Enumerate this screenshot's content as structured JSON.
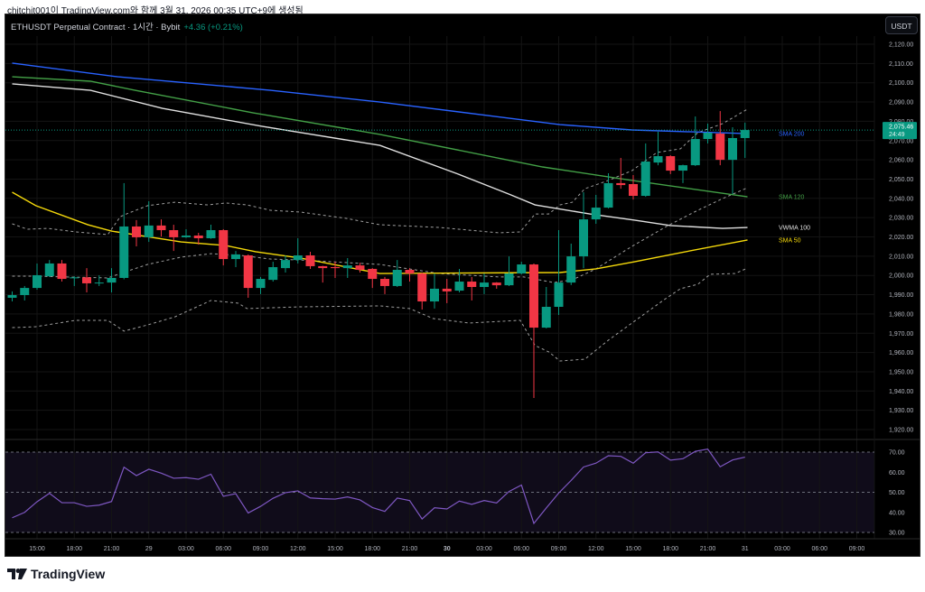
{
  "caption": "chitchit001이 TradingView.com와 함께 3월 31, 2026 00:35 UTC+9에 생성됨",
  "header": {
    "symbol": "ETHUSDT Perpetual Contract · 1시간 · Bybit",
    "change": "+4.36 (+0.21%)"
  },
  "currency_button": "USDT",
  "footer_logo": "TradingView",
  "colors": {
    "up": "#089981",
    "down": "#f23645",
    "sma200": "#2962ff",
    "sma120": "#43a047",
    "vwma100": "#e0e0e0",
    "sma50": "#f5d90a",
    "bands": "#9e9e9e",
    "rsi": "#7e57c2"
  },
  "chart_data": {
    "type": "candlestick",
    "title": "ETHUSDT Perpetual Contract · 1시간 · Bybit",
    "interval": "1h",
    "first_candle": "28 13:00",
    "ylim": [
      1915.8,
      2124.2
    ],
    "grid": true,
    "y_ticks": [
      "2,120.00",
      "2,110.00",
      "2,100.00",
      "2,090.00",
      "2,080.00",
      "2,070.00",
      "2,060.00",
      "2,050.00",
      "2,040.00",
      "2,030.00",
      "2,020.00",
      "2,010.00",
      "2,000.00",
      "1,990.00",
      "1,980.00",
      "1,970.00",
      "1,960.00",
      "1,950.00",
      "1,940.00",
      "1,930.00",
      "1,920.00"
    ],
    "y_tick_values": [
      2120,
      2110,
      2100,
      2090,
      2080,
      2070,
      2060,
      2050,
      2040,
      2030,
      2020,
      2010,
      2000,
      1990,
      1980,
      1970,
      1960,
      1950,
      1940,
      1930,
      1920
    ],
    "x_ticks": [
      "15:00",
      "18:00",
      "21:00",
      "29",
      "03:00",
      "06:00",
      "09:00",
      "12:00",
      "15:00",
      "18:00",
      "21:00",
      "30",
      "03:00",
      "06:00",
      "09:00",
      "12:00",
      "15:00",
      "18:00",
      "21:00",
      "31",
      "03:00",
      "06:00",
      "09:00"
    ],
    "x_tick_first_hour": 2,
    "x_tick_step_hours": 3,
    "last_price": {
      "value": 2075.46,
      "label": "2,075.46",
      "countdown": "24:49"
    },
    "ohlc": [
      [
        1988.4,
        1991.7,
        1986.5,
        1989.8
      ],
      [
        1989.8,
        1994.5,
        1987,
        1993.5
      ],
      [
        1993.5,
        2006.2,
        1992.6,
        2000.1
      ],
      [
        1999.6,
        2008,
        1999.2,
        2006.2
      ],
      [
        2006.2,
        2008,
        1996.8,
        1998.2
      ],
      [
        1998.5,
        1999.6,
        1994.5,
        1999
      ],
      [
        1999,
        2003.8,
        1991.2,
        1995.9
      ],
      [
        1995.9,
        2000.1,
        1994.5,
        1996.3
      ],
      [
        1996.3,
        2003.8,
        1991.2,
        1998.7
      ],
      [
        1998.7,
        2047.9,
        1998,
        2025.4
      ],
      [
        2025.4,
        2028.7,
        2015.1,
        2019.8
      ],
      [
        2019.8,
        2038.5,
        2017.4,
        2025.9
      ],
      [
        2025.9,
        2029.1,
        2020.2,
        2023.5
      ],
      [
        2023.5,
        2026.3,
        2012.7,
        2019.8
      ],
      [
        2019.8,
        2024,
        2019.5,
        2020.7
      ],
      [
        2020.7,
        2022.1,
        2016,
        2019.3
      ],
      [
        2019.3,
        2026.3,
        2019,
        2023.5
      ],
      [
        2023.5,
        2024,
        2005.2,
        2008.5
      ],
      [
        2008.5,
        2012.7,
        2004.3,
        2010.9
      ],
      [
        2010.4,
        2010.9,
        1988.4,
        1993.5
      ],
      [
        1993.5,
        1999.2,
        1990.3,
        1998.2
      ],
      [
        1997.7,
        2007.1,
        1996.8,
        2004.3
      ],
      [
        2003.8,
        2010.4,
        2001.5,
        2008
      ],
      [
        2008,
        2019.3,
        2006.2,
        2010.4
      ],
      [
        2010.4,
        2012.3,
        2003.4,
        2004.8
      ],
      [
        2004.8,
        2005,
        1996.3,
        2003.8
      ],
      [
        2004.3,
        2007.1,
        1998.7,
        2003.8
      ],
      [
        2003.8,
        2009,
        1998.7,
        2005.2
      ],
      [
        2005.2,
        2006.6,
        2001.5,
        2002.9
      ],
      [
        2003.4,
        2003.8,
        1993.5,
        1998.2
      ],
      [
        1998.2,
        1999.2,
        1990.3,
        1994.5
      ],
      [
        1994.5,
        2008,
        1994,
        2002.9
      ],
      [
        2002.9,
        2003.8,
        1996.8,
        2001
      ],
      [
        2001,
        2001.5,
        1982.3,
        1986.5
      ],
      [
        1986.5,
        2001,
        1982.8,
        1993.1
      ],
      [
        1993.1,
        1998.2,
        1985.6,
        1991.7
      ],
      [
        1992.1,
        2003.4,
        1991.2,
        1996.8
      ],
      [
        1996.8,
        1999.2,
        1987,
        1994
      ],
      [
        1994,
        2001,
        1990.3,
        1996.3
      ],
      [
        1996.3,
        1996.5,
        1993.1,
        1994.9
      ],
      [
        1994.9,
        2009.9,
        1994.5,
        2001
      ],
      [
        2001,
        2007.1,
        2000.5,
        2005.7
      ],
      [
        2005.7,
        2006.2,
        1936.4,
        1972.9
      ],
      [
        1972.9,
        1994,
        1972.5,
        1983.7
      ],
      [
        1983.7,
        2023.5,
        1979.5,
        1996.3
      ],
      [
        1996.3,
        2016.5,
        1995,
        2009.9
      ],
      [
        2009.9,
        2043.2,
        2003.8,
        2029.1
      ],
      [
        2029.1,
        2041.8,
        2026.8,
        2035.2
      ],
      [
        2035.2,
        2053,
        2034.8,
        2047.9
      ],
      [
        2047.9,
        2061,
        2045,
        2046.9
      ],
      [
        2047.4,
        2052.1,
        2039.4,
        2041.3
      ],
      [
        2041.3,
        2068.5,
        2040.8,
        2059.1
      ],
      [
        2058.6,
        2074.6,
        2057.2,
        2061.9
      ],
      [
        2061.9,
        2062.4,
        2052.6,
        2054.4
      ],
      [
        2054.4,
        2057.5,
        2047.9,
        2057.2
      ],
      [
        2057.2,
        2082.5,
        2056.8,
        2070.8
      ],
      [
        2070.8,
        2078.8,
        2068.5,
        2074.1
      ],
      [
        2073.6,
        2085.3,
        2057.2,
        2060
      ],
      [
        2060,
        2076.9,
        2042.2,
        2071.3
      ],
      [
        2071.3,
        2079.3,
        2061,
        2075.46
      ]
    ],
    "series": [
      {
        "name": "SMA 200",
        "key": "sma200",
        "points": [
          [
            0,
            2110.2
          ],
          [
            8.5,
            2103.1
          ],
          [
            20.8,
            2096.1
          ],
          [
            29.6,
            2090
          ],
          [
            44.1,
            2078.3
          ],
          [
            49.9,
            2075.5
          ],
          [
            59.2,
            2073.6
          ]
        ]
      },
      {
        "name": "SMA 120",
        "key": "sma120",
        "points": [
          [
            0,
            2103.1
          ],
          [
            6.3,
            2100.8
          ],
          [
            9.9,
            2096.1
          ],
          [
            19.4,
            2084.4
          ],
          [
            29.6,
            2073.2
          ],
          [
            42.7,
            2056.3
          ],
          [
            49.9,
            2049.3
          ],
          [
            59.2,
            2040.8
          ]
        ]
      },
      {
        "name": "VWMA 100",
        "key": "vwma100",
        "points": [
          [
            0,
            2099.4
          ],
          [
            6.3,
            2096.1
          ],
          [
            12.1,
            2086.7
          ],
          [
            20.1,
            2077.4
          ],
          [
            29.6,
            2067.5
          ],
          [
            35.9,
            2052.6
          ],
          [
            40,
            2042.2
          ],
          [
            42.1,
            2036.6
          ],
          [
            46.5,
            2031.9
          ],
          [
            50.1,
            2028.7
          ],
          [
            53,
            2025.9
          ],
          [
            57.2,
            2024.4
          ],
          [
            59.2,
            2024.9
          ]
        ]
      },
      {
        "name": "SMA 50",
        "key": "sma50",
        "points": [
          [
            0,
            2043.2
          ],
          [
            1.9,
            2036.2
          ],
          [
            6.1,
            2026.3
          ],
          [
            8,
            2023
          ],
          [
            13.6,
            2017.4
          ],
          [
            17.2,
            2015.5
          ],
          [
            19.6,
            2012.3
          ],
          [
            23.2,
            2009
          ],
          [
            29.6,
            2001
          ],
          [
            44.1,
            2001.5
          ],
          [
            47,
            2003.4
          ],
          [
            50.1,
            2007.1
          ],
          [
            53.8,
            2011.8
          ],
          [
            59.2,
            2018.4
          ]
        ]
      }
    ],
    "bollinger": {
      "upper": [
        [
          0,
          2026.8
        ],
        [
          1.2,
          2024
        ],
        [
          2.9,
          2024.4
        ],
        [
          5.1,
          2022.6
        ],
        [
          7.7,
          2021.2
        ],
        [
          8.7,
          2030.5
        ],
        [
          9.2,
          2031.9
        ],
        [
          10.9,
          2036.2
        ],
        [
          13.1,
          2038
        ],
        [
          15.7,
          2036.6
        ],
        [
          17.2,
          2037.6
        ],
        [
          18.9,
          2036.6
        ],
        [
          20.8,
          2033.8
        ],
        [
          23.2,
          2032.9
        ],
        [
          26.9,
          2029.6
        ],
        [
          29.6,
          2026.3
        ],
        [
          34.4,
          2024.9
        ],
        [
          39.2,
          2022.1
        ],
        [
          40.9,
          2022.6
        ],
        [
          42.1,
          2031.9
        ],
        [
          43.2,
          2031.9
        ],
        [
          44.1,
          2036.6
        ],
        [
          45.1,
          2038
        ],
        [
          46.1,
          2045
        ],
        [
          48,
          2049.3
        ],
        [
          49.9,
          2054.4
        ],
        [
          51.9,
          2063.8
        ],
        [
          53.8,
          2065.7
        ],
        [
          55.2,
          2074.1
        ],
        [
          57.2,
          2078.8
        ],
        [
          59.2,
          2086.3
        ]
      ],
      "basis": [
        [
          0,
          1999.6
        ],
        [
          1.9,
          1999.6
        ],
        [
          7.7,
          1998.7
        ],
        [
          8.7,
          2001
        ],
        [
          10.9,
          2005.7
        ],
        [
          13.6,
          2009.5
        ],
        [
          16,
          2011.3
        ],
        [
          18.4,
          2010.4
        ],
        [
          20.8,
          2008.5
        ],
        [
          23.2,
          2008
        ],
        [
          29.6,
          2005.7
        ],
        [
          34.4,
          2001
        ],
        [
          39.2,
          1999.2
        ],
        [
          41.2,
          1999.2
        ],
        [
          43.6,
          1996.3
        ],
        [
          45.1,
          1997.7
        ],
        [
          47,
          2003.4
        ],
        [
          49.9,
          2015.1
        ],
        [
          52.8,
          2025.9
        ],
        [
          55.2,
          2033.8
        ],
        [
          57.2,
          2039.9
        ],
        [
          59.2,
          2045.5
        ]
      ],
      "lower": [
        [
          0,
          1972.9
        ],
        [
          1.9,
          1973.4
        ],
        [
          5.1,
          1976.7
        ],
        [
          7.7,
          1976.7
        ],
        [
          9,
          1971.1
        ],
        [
          10.9,
          1974.3
        ],
        [
          13.1,
          1978.5
        ],
        [
          16,
          1987
        ],
        [
          18.2,
          1985.6
        ],
        [
          18.9,
          1982.8
        ],
        [
          23.2,
          1983.7
        ],
        [
          29.6,
          1984.2
        ],
        [
          32,
          1982.8
        ],
        [
          33.9,
          1977.6
        ],
        [
          36.8,
          1975.3
        ],
        [
          40.9,
          1976.7
        ],
        [
          42.1,
          1963.6
        ],
        [
          43.2,
          1960.3
        ],
        [
          44.1,
          1955.6
        ],
        [
          46.1,
          1956.5
        ],
        [
          48,
          1966.4
        ],
        [
          49.9,
          1975.3
        ],
        [
          52.4,
          1987
        ],
        [
          53.8,
          1993.1
        ],
        [
          55.2,
          1995.4
        ],
        [
          56.2,
          2000.6
        ],
        [
          58.2,
          2001
        ],
        [
          59.2,
          2003.8
        ]
      ]
    },
    "rsi": {
      "ylim": [
        25,
        75
      ],
      "levels": [
        70,
        50,
        30
      ],
      "y_ticks": [
        "70.00",
        "60.00",
        "50.00",
        "40.00",
        "30.00"
      ],
      "y_tick_values": [
        70,
        60,
        50,
        40,
        30
      ],
      "values": [
        37.3,
        40,
        45.3,
        49.5,
        44.8,
        44.8,
        43,
        43.6,
        45.4,
        62.5,
        58.3,
        61.5,
        59.5,
        57,
        57.3,
        56.5,
        59,
        48,
        49.3,
        39.7,
        43,
        47,
        49.8,
        50.7,
        47.2,
        46.8,
        46.6,
        47.7,
        46.2,
        42.4,
        40.5,
        47.1,
        45.9,
        36.7,
        42.3,
        41.7,
        45.6,
        44,
        45.9,
        44.7,
        50.4,
        53.6,
        34.5,
        42.2,
        49.6,
        55.9,
        62.6,
        64.5,
        68.2,
        67.9,
        64.5,
        69.7,
        70.1,
        66,
        66.7,
        70.4,
        71.5,
        62.7,
        66.1,
        67.5
      ]
    }
  }
}
